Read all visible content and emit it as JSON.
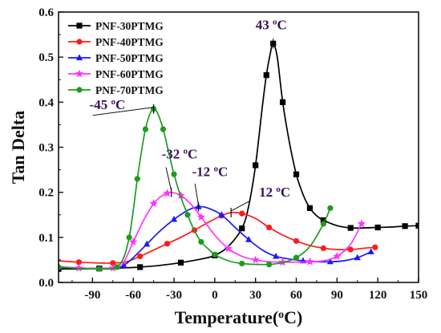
{
  "chart_data": {
    "type": "line",
    "title": "",
    "xlabel": "Temperature(",
    "xlabel_unit": "°C",
    "xlabel_close": ")",
    "ylabel": "Tan  Delta",
    "xlim": [
      -115,
      150
    ],
    "ylim": [
      0.0,
      0.6
    ],
    "x_ticks": [
      -90,
      -60,
      -30,
      0,
      30,
      60,
      90,
      120,
      150
    ],
    "y_ticks": [
      0.0,
      0.1,
      0.2,
      0.3,
      0.4,
      0.5,
      0.6
    ],
    "x_tick_labels": [
      "-90",
      "-60",
      "-30",
      "0",
      "30",
      "60",
      "90",
      "120",
      "150"
    ],
    "y_tick_labels": [
      "0.0",
      "0.1",
      "0.2",
      "0.3",
      "0.4",
      "0.5",
      "0.6"
    ],
    "grid": false,
    "legend_position": "top-left",
    "series": [
      {
        "name": "PNF-30PTMG",
        "color": "#000000",
        "marker": "square",
        "x": [
          -115,
          -100,
          -85,
          -70,
          -55,
          -40,
          -25,
          -10,
          0,
          10,
          20,
          25,
          30,
          35,
          38,
          41,
          43,
          46,
          50,
          55,
          60,
          65,
          70,
          75,
          80,
          90,
          100,
          110,
          120,
          130,
          140,
          150
        ],
        "y": [
          0.03,
          0.03,
          0.031,
          0.032,
          0.034,
          0.038,
          0.044,
          0.052,
          0.06,
          0.08,
          0.12,
          0.17,
          0.26,
          0.39,
          0.46,
          0.51,
          0.53,
          0.5,
          0.4,
          0.31,
          0.24,
          0.195,
          0.165,
          0.148,
          0.138,
          0.126,
          0.121,
          0.121,
          0.122,
          0.123,
          0.125,
          0.126
        ]
      },
      {
        "name": "PNF-40PTMG",
        "color": "#ff1a1a",
        "marker": "circle",
        "x": [
          -115,
          -100,
          -85,
          -75,
          -65,
          -55,
          -45,
          -35,
          -25,
          -15,
          -5,
          5,
          12,
          20,
          30,
          40,
          50,
          60,
          70,
          80,
          90,
          100,
          110,
          118
        ],
        "y": [
          0.048,
          0.045,
          0.043,
          0.043,
          0.046,
          0.058,
          0.072,
          0.086,
          0.1,
          0.116,
          0.133,
          0.148,
          0.155,
          0.153,
          0.142,
          0.122,
          0.105,
          0.092,
          0.082,
          0.076,
          0.073,
          0.073,
          0.076,
          0.078
        ]
      },
      {
        "name": "PNF-50PTMG",
        "color": "#1a1aff",
        "marker": "triangle",
        "x": [
          -115,
          -100,
          -85,
          -75,
          -67,
          -60,
          -50,
          -40,
          -30,
          -20,
          -12,
          -5,
          5,
          15,
          25,
          35,
          45,
          55,
          65,
          75,
          85,
          95,
          105,
          115
        ],
        "y": [
          0.035,
          0.032,
          0.031,
          0.032,
          0.038,
          0.055,
          0.085,
          0.115,
          0.14,
          0.16,
          0.168,
          0.165,
          0.15,
          0.122,
          0.095,
          0.072,
          0.058,
          0.052,
          0.048,
          0.046,
          0.046,
          0.048,
          0.055,
          0.068
        ]
      },
      {
        "name": "PNF-60PTMG",
        "color": "#ff33ff",
        "marker": "star",
        "x": [
          -115,
          -100,
          -85,
          -75,
          -68,
          -60,
          -52,
          -45,
          -40,
          -35,
          -32,
          -25,
          -18,
          -10,
          0,
          10,
          20,
          30,
          40,
          50,
          60,
          70,
          80,
          90,
          100,
          108
        ],
        "y": [
          0.035,
          0.032,
          0.031,
          0.032,
          0.04,
          0.09,
          0.14,
          0.175,
          0.19,
          0.198,
          0.2,
          0.193,
          0.175,
          0.145,
          0.105,
          0.075,
          0.058,
          0.05,
          0.046,
          0.045,
          0.045,
          0.046,
          0.048,
          0.058,
          0.085,
          0.13
        ]
      },
      {
        "name": "PNF-70PTMG",
        "color": "#1f9a1f",
        "marker": "circle",
        "x": [
          -115,
          -100,
          -85,
          -78,
          -72,
          -67,
          -63,
          -60,
          -57,
          -54,
          -51,
          -48,
          -45,
          -42,
          -38,
          -34,
          -30,
          -25,
          -20,
          -15,
          -10,
          -5,
          0,
          10,
          20,
          30,
          40,
          50,
          60,
          70,
          80,
          85
        ],
        "y": [
          0.034,
          0.031,
          0.03,
          0.03,
          0.034,
          0.055,
          0.1,
          0.16,
          0.23,
          0.29,
          0.34,
          0.372,
          0.385,
          0.375,
          0.34,
          0.29,
          0.24,
          0.19,
          0.15,
          0.115,
          0.09,
          0.075,
          0.062,
          0.048,
          0.042,
          0.04,
          0.04,
          0.044,
          0.055,
          0.08,
          0.13,
          0.165
        ]
      }
    ],
    "annotations": [
      {
        "text_main": "43 ",
        "text_sup": "o",
        "text_tail": "C",
        "x": 43,
        "y": 0.53,
        "color": "#3b1259"
      },
      {
        "text_main": "-45 ",
        "text_sup": "o",
        "text_tail": "C",
        "x": -45,
        "y": 0.385,
        "color": "#3b1259"
      },
      {
        "text_main": "-32 ",
        "text_sup": "o",
        "text_tail": "C",
        "x": -32,
        "y": 0.2,
        "color": "#3b1259"
      },
      {
        "text_main": "-12 ",
        "text_sup": "o",
        "text_tail": "C",
        "x": -12,
        "y": 0.168,
        "color": "#3b1259"
      },
      {
        "text_main": "12 ",
        "text_sup": "o",
        "text_tail": "C",
        "x": 12,
        "y": 0.155,
        "color": "#3b1259"
      }
    ]
  }
}
